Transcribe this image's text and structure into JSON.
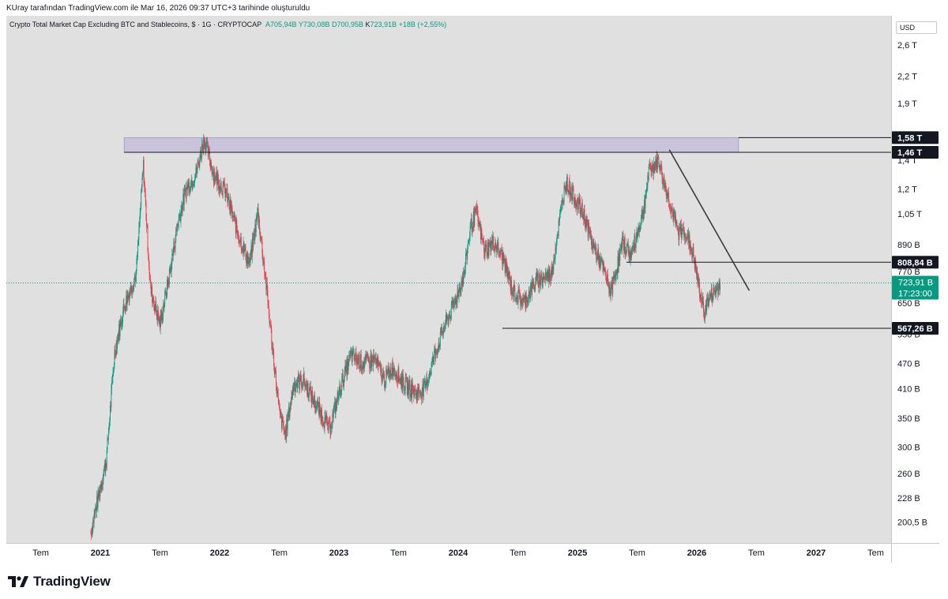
{
  "header": {
    "watermark_text": "KUray tarafından TradingView.com ile Mar 16, 2026 09:37 UTC+3 tarihinde oluşturuldu"
  },
  "symbol": {
    "name": "Crypto Total Market Cap Excluding BTC and Stablecoins, $ · 1G · CRYPTOCAP",
    "open": "A705,94B",
    "high": "Y730,08B",
    "low": "D700,95B",
    "close_label": "K",
    "close_value": "723,91B",
    "change": "+18B (+2,55%)"
  },
  "price_scale": {
    "currency": "USD"
  },
  "footer": {
    "brand": "TradingView"
  },
  "colors": {
    "up": "#089981",
    "down": "#f23645",
    "background": "#e0e0e0",
    "zone": "#c9c4dc",
    "line": "#131722"
  },
  "chart_data": {
    "type": "candlestick",
    "title": "Crypto Total Market Cap Excluding BTC and Stablecoins",
    "scale": "log",
    "ylim": [
      185,
      3000
    ],
    "y_tick_labels": [
      {
        "label": "2,6 T",
        "value": 2600
      },
      {
        "label": "2,2 T",
        "value": 2200
      },
      {
        "label": "1,9 T",
        "value": 1900
      },
      {
        "label": "1,4 T",
        "value": 1400
      },
      {
        "label": "1,2 T",
        "value": 1200
      },
      {
        "label": "1,05 T",
        "value": 1050
      },
      {
        "label": "890 B",
        "value": 890
      },
      {
        "label": "770 B",
        "value": 770
      },
      {
        "label": "650 B",
        "value": 650
      },
      {
        "label": "550 B",
        "value": 550
      },
      {
        "label": "470 B",
        "value": 470
      },
      {
        "label": "410 B",
        "value": 410
      },
      {
        "label": "350 B",
        "value": 350
      },
      {
        "label": "300 B",
        "value": 300
      },
      {
        "label": "260 B",
        "value": 260
      },
      {
        "label": "228 B",
        "value": 228
      },
      {
        "label": "200,5 B",
        "value": 200.5
      }
    ],
    "x_tick_labels": [
      {
        "label": "Tem",
        "t": 2020.5,
        "bold": false
      },
      {
        "label": "2021",
        "t": 2021.0,
        "bold": true
      },
      {
        "label": "Tem",
        "t": 2021.5,
        "bold": false
      },
      {
        "label": "2022",
        "t": 2022.0,
        "bold": true
      },
      {
        "label": "Tem",
        "t": 2022.5,
        "bold": false
      },
      {
        "label": "2023",
        "t": 2023.0,
        "bold": true
      },
      {
        "label": "Tem",
        "t": 2023.5,
        "bold": false
      },
      {
        "label": "2024",
        "t": 2024.0,
        "bold": true
      },
      {
        "label": "Tem",
        "t": 2024.5,
        "bold": false
      },
      {
        "label": "2025",
        "t": 2025.0,
        "bold": true
      },
      {
        "label": "Tem",
        "t": 2025.5,
        "bold": false
      },
      {
        "label": "2026",
        "t": 2026.0,
        "bold": true
      },
      {
        "label": "Tem",
        "t": 2026.5,
        "bold": false
      },
      {
        "label": "2027",
        "t": 2027.0,
        "bold": true
      },
      {
        "label": "Tem",
        "t": 2027.5,
        "bold": false
      }
    ],
    "price_path": [
      [
        2020.92,
        190
      ],
      [
        2021.05,
        280
      ],
      [
        2021.12,
        500
      ],
      [
        2021.2,
        640
      ],
      [
        2021.3,
        760
      ],
      [
        2021.36,
        1360
      ],
      [
        2021.42,
        700
      ],
      [
        2021.5,
        580
      ],
      [
        2021.58,
        760
      ],
      [
        2021.65,
        1000
      ],
      [
        2021.72,
        1200
      ],
      [
        2021.8,
        1300
      ],
      [
        2021.87,
        1570
      ],
      [
        2021.95,
        1300
      ],
      [
        2022.05,
        1180
      ],
      [
        2022.15,
        950
      ],
      [
        2022.25,
        800
      ],
      [
        2022.32,
        1060
      ],
      [
        2022.38,
        760
      ],
      [
        2022.44,
        520
      ],
      [
        2022.5,
        360
      ],
      [
        2022.55,
        320
      ],
      [
        2022.62,
        420
      ],
      [
        2022.7,
        430
      ],
      [
        2022.8,
        380
      ],
      [
        2022.92,
        330
      ],
      [
        2023.02,
        420
      ],
      [
        2023.1,
        490
      ],
      [
        2023.2,
        470
      ],
      [
        2023.3,
        480
      ],
      [
        2023.38,
        430
      ],
      [
        2023.45,
        460
      ],
      [
        2023.55,
        420
      ],
      [
        2023.65,
        400
      ],
      [
        2023.72,
        410
      ],
      [
        2023.8,
        490
      ],
      [
        2023.88,
        570
      ],
      [
        2023.96,
        640
      ],
      [
        2024.05,
        760
      ],
      [
        2024.1,
        970
      ],
      [
        2024.15,
        1060
      ],
      [
        2024.22,
        860
      ],
      [
        2024.3,
        900
      ],
      [
        2024.38,
        820
      ],
      [
        2024.45,
        700
      ],
      [
        2024.55,
        650
      ],
      [
        2024.65,
        730
      ],
      [
        2024.78,
        760
      ],
      [
        2024.9,
        1250
      ],
      [
        2024.97,
        1150
      ],
      [
        2025.05,
        1050
      ],
      [
        2025.12,
        900
      ],
      [
        2025.2,
        800
      ],
      [
        2025.28,
        690
      ],
      [
        2025.38,
        900
      ],
      [
        2025.45,
        840
      ],
      [
        2025.55,
        1060
      ],
      [
        2025.6,
        1320
      ],
      [
        2025.68,
        1400
      ],
      [
        2025.72,
        1250
      ],
      [
        2025.78,
        1100
      ],
      [
        2025.84,
        950
      ],
      [
        2025.9,
        960
      ],
      [
        2025.97,
        840
      ],
      [
        2026.02,
        700
      ],
      [
        2026.06,
        620
      ],
      [
        2026.1,
        665
      ],
      [
        2026.15,
        690
      ],
      [
        2026.2,
        724
      ]
    ],
    "annotations": {
      "resistance_zone": {
        "low": 1460,
        "high": 1580,
        "t_start": 2021.2,
        "t_end": 2026.35
      },
      "horizontal_lines": [
        {
          "value": 1460,
          "t_start": 2021.2,
          "label": "1,46 T"
        },
        {
          "value": 1580,
          "t_start": 2026.35,
          "label": "1,58 T"
        },
        {
          "value": 808.84,
          "t_start": 2025.41,
          "label": "808,84 B"
        },
        {
          "value": 567.26,
          "t_start": 2024.37,
          "label": "567,26 B"
        }
      ],
      "trendline": [
        [
          2025.77,
          1480
        ],
        [
          2026.44,
          695
        ]
      ],
      "current_price": {
        "value": 723.91,
        "label": "723,91 B",
        "countdown": "17:23:00"
      }
    }
  }
}
